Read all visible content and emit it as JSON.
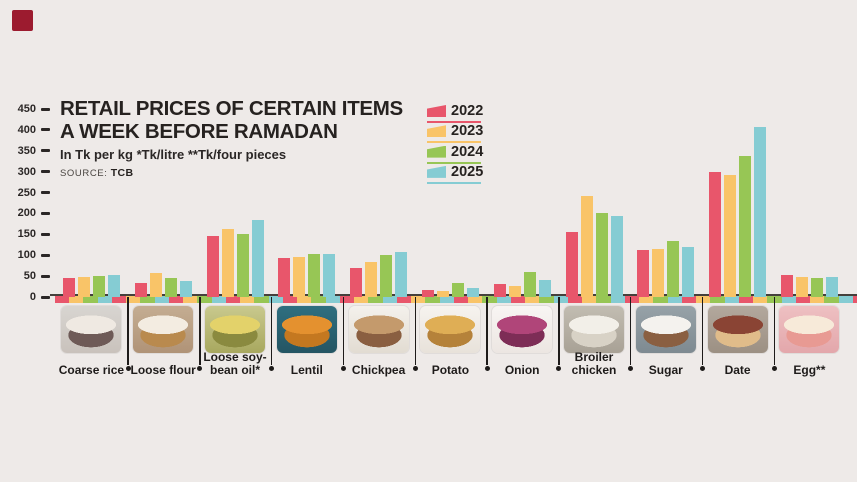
{
  "logo": {
    "name": "daily-star-logo-mark",
    "color": "#9c1b2f"
  },
  "header": {
    "title_line1": "RETAIL PRICES OF CERTAIN ITEMS",
    "title_line2": "A WEEK BEFORE RAMADAN",
    "subtitle": "In Tk per kg *Tk/litre **Tk/four pieces",
    "source_label": "SOURCE:",
    "source_value": "TCB"
  },
  "colors": {
    "background": "#eeeae8",
    "text": "#262220",
    "axis": "#45403c"
  },
  "chart_data": {
    "type": "bar",
    "title": "Retail prices of certain items a week before Ramadan",
    "unit_note": "In Tk per kg *Tk/litre **Tk/four pieces",
    "categories": [
      "Coarse rice",
      "Loose flour",
      "Loose soybean oil*",
      "Lentil",
      "Chickpea",
      "Potato",
      "Onion",
      "Broiler chicken",
      "Sugar",
      "Date",
      "Egg**"
    ],
    "category_label_lines": [
      [
        "Coarse rice"
      ],
      [
        "Loose flour"
      ],
      [
        "Loose soy-",
        "bean oil*"
      ],
      [
        "Lentil"
      ],
      [
        "Chickpea"
      ],
      [
        "Potato"
      ],
      [
        "Onion"
      ],
      [
        "Broiler",
        "chicken"
      ],
      [
        "Sugar"
      ],
      [
        "Date"
      ],
      [
        "Egg**"
      ]
    ],
    "series": [
      {
        "name": "2022",
        "color": "#e8566b",
        "values": [
          45,
          34,
          145,
          94,
          70,
          18,
          32,
          155,
          112,
          300,
          52
        ]
      },
      {
        "name": "2023",
        "color": "#f9c468",
        "values": [
          48,
          57,
          164,
          95,
          85,
          15,
          27,
          242,
          116,
          293,
          47
        ]
      },
      {
        "name": "2024",
        "color": "#97c655",
        "values": [
          51,
          45,
          150,
          104,
          100,
          33,
          60,
          201,
          135,
          337,
          45
        ]
      },
      {
        "name": "2025",
        "color": "#85ccd3",
        "values": [
          53,
          39,
          184,
          104,
          108,
          22,
          42,
          195,
          120,
          407,
          49
        ]
      }
    ],
    "ylim": [
      0,
      450
    ],
    "ytick_step": 50,
    "grid": false,
    "legend_position": "top-right"
  },
  "thumbnails": [
    {
      "item": "coarse-rice",
      "bg": "#d8d5d1",
      "bg2": "#c9c2bc",
      "food": "#efe9e2",
      "bowl": "#6e5a57"
    },
    {
      "item": "loose-flour",
      "bg": "#c4ad92",
      "bg2": "#b09377",
      "food": "#f3ece1",
      "bowl": "#b98a4e"
    },
    {
      "item": "soybean-oil",
      "bg": "#c9c98e",
      "bg2": "#a8a85f",
      "food": "#e3d26a",
      "bowl": "#8a8a3f"
    },
    {
      "item": "lentil",
      "bg": "#2f6f80",
      "bg2": "#245563",
      "food": "#e4912f",
      "bowl": "#c47820"
    },
    {
      "item": "chickpea",
      "bg": "#f4f1ec",
      "bg2": "#e2dcd2",
      "food": "#c49a6c",
      "bowl": "#8a5f41"
    },
    {
      "item": "potato",
      "bg": "#f6f3ef",
      "bg2": "#e8e2da",
      "food": "#dfae55",
      "bowl": "#b5823a"
    },
    {
      "item": "onion",
      "bg": "#f8f5f3",
      "bg2": "#ece6e2",
      "food": "#b04579",
      "bowl": "#7d2d56"
    },
    {
      "item": "broiler-chicken",
      "bg": "#c2bdb2",
      "bg2": "#a8a195",
      "food": "#f2efe8",
      "bowl": "#d8d2c6"
    },
    {
      "item": "sugar",
      "bg": "#97a2a8",
      "bg2": "#7e8a91",
      "food": "#f4f2ee",
      "bowl": "#8a5f41"
    },
    {
      "item": "date",
      "bg": "#b3a89d",
      "bg2": "#9c9083",
      "food": "#8a4434",
      "bowl": "#e0bc8a"
    },
    {
      "item": "egg",
      "bg": "#eec0c2",
      "bg2": "#e3a7ab",
      "food": "#f7ead9",
      "bowl": "#e89a93"
    }
  ]
}
